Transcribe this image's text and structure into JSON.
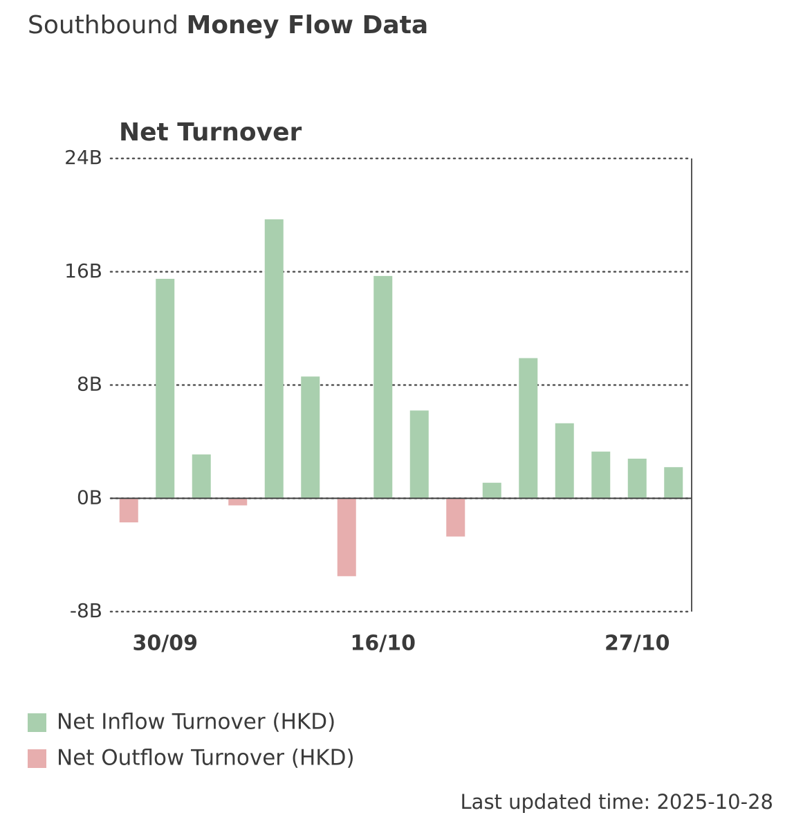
{
  "header": {
    "title_light": "Southbound",
    "title_bold": "Money Flow Data"
  },
  "chart_data": {
    "type": "bar",
    "title": "Net Turnover",
    "categories": [
      null,
      "30/09",
      null,
      null,
      null,
      null,
      null,
      "16/10",
      null,
      null,
      null,
      null,
      null,
      null,
      "27/10",
      null
    ],
    "series": [
      {
        "name": "Net Inflow Turnover (HKD)",
        "color": "#a9cfae",
        "values": [
          null,
          15.5,
          3.1,
          null,
          19.7,
          8.6,
          null,
          15.7,
          6.2,
          null,
          1.1,
          9.9,
          5.3,
          3.3,
          2.8,
          2.2
        ]
      },
      {
        "name": "Net Outflow Turnover (HKD)",
        "color": "#e7aeae",
        "values": [
          -1.7,
          null,
          null,
          -0.5,
          null,
          null,
          -5.5,
          null,
          null,
          -2.7,
          null,
          null,
          null,
          null,
          null,
          null
        ]
      }
    ],
    "ylim": [
      -8,
      24
    ],
    "yticks": [
      {
        "value": -8,
        "label": "-8B"
      },
      {
        "value": 0,
        "label": "0B"
      },
      {
        "value": 8,
        "label": "8B"
      },
      {
        "value": 16,
        "label": "16B"
      },
      {
        "value": 24,
        "label": "24B"
      }
    ],
    "grid": true
  },
  "footer": {
    "updated": "Last updated time: 2025-10-28"
  }
}
